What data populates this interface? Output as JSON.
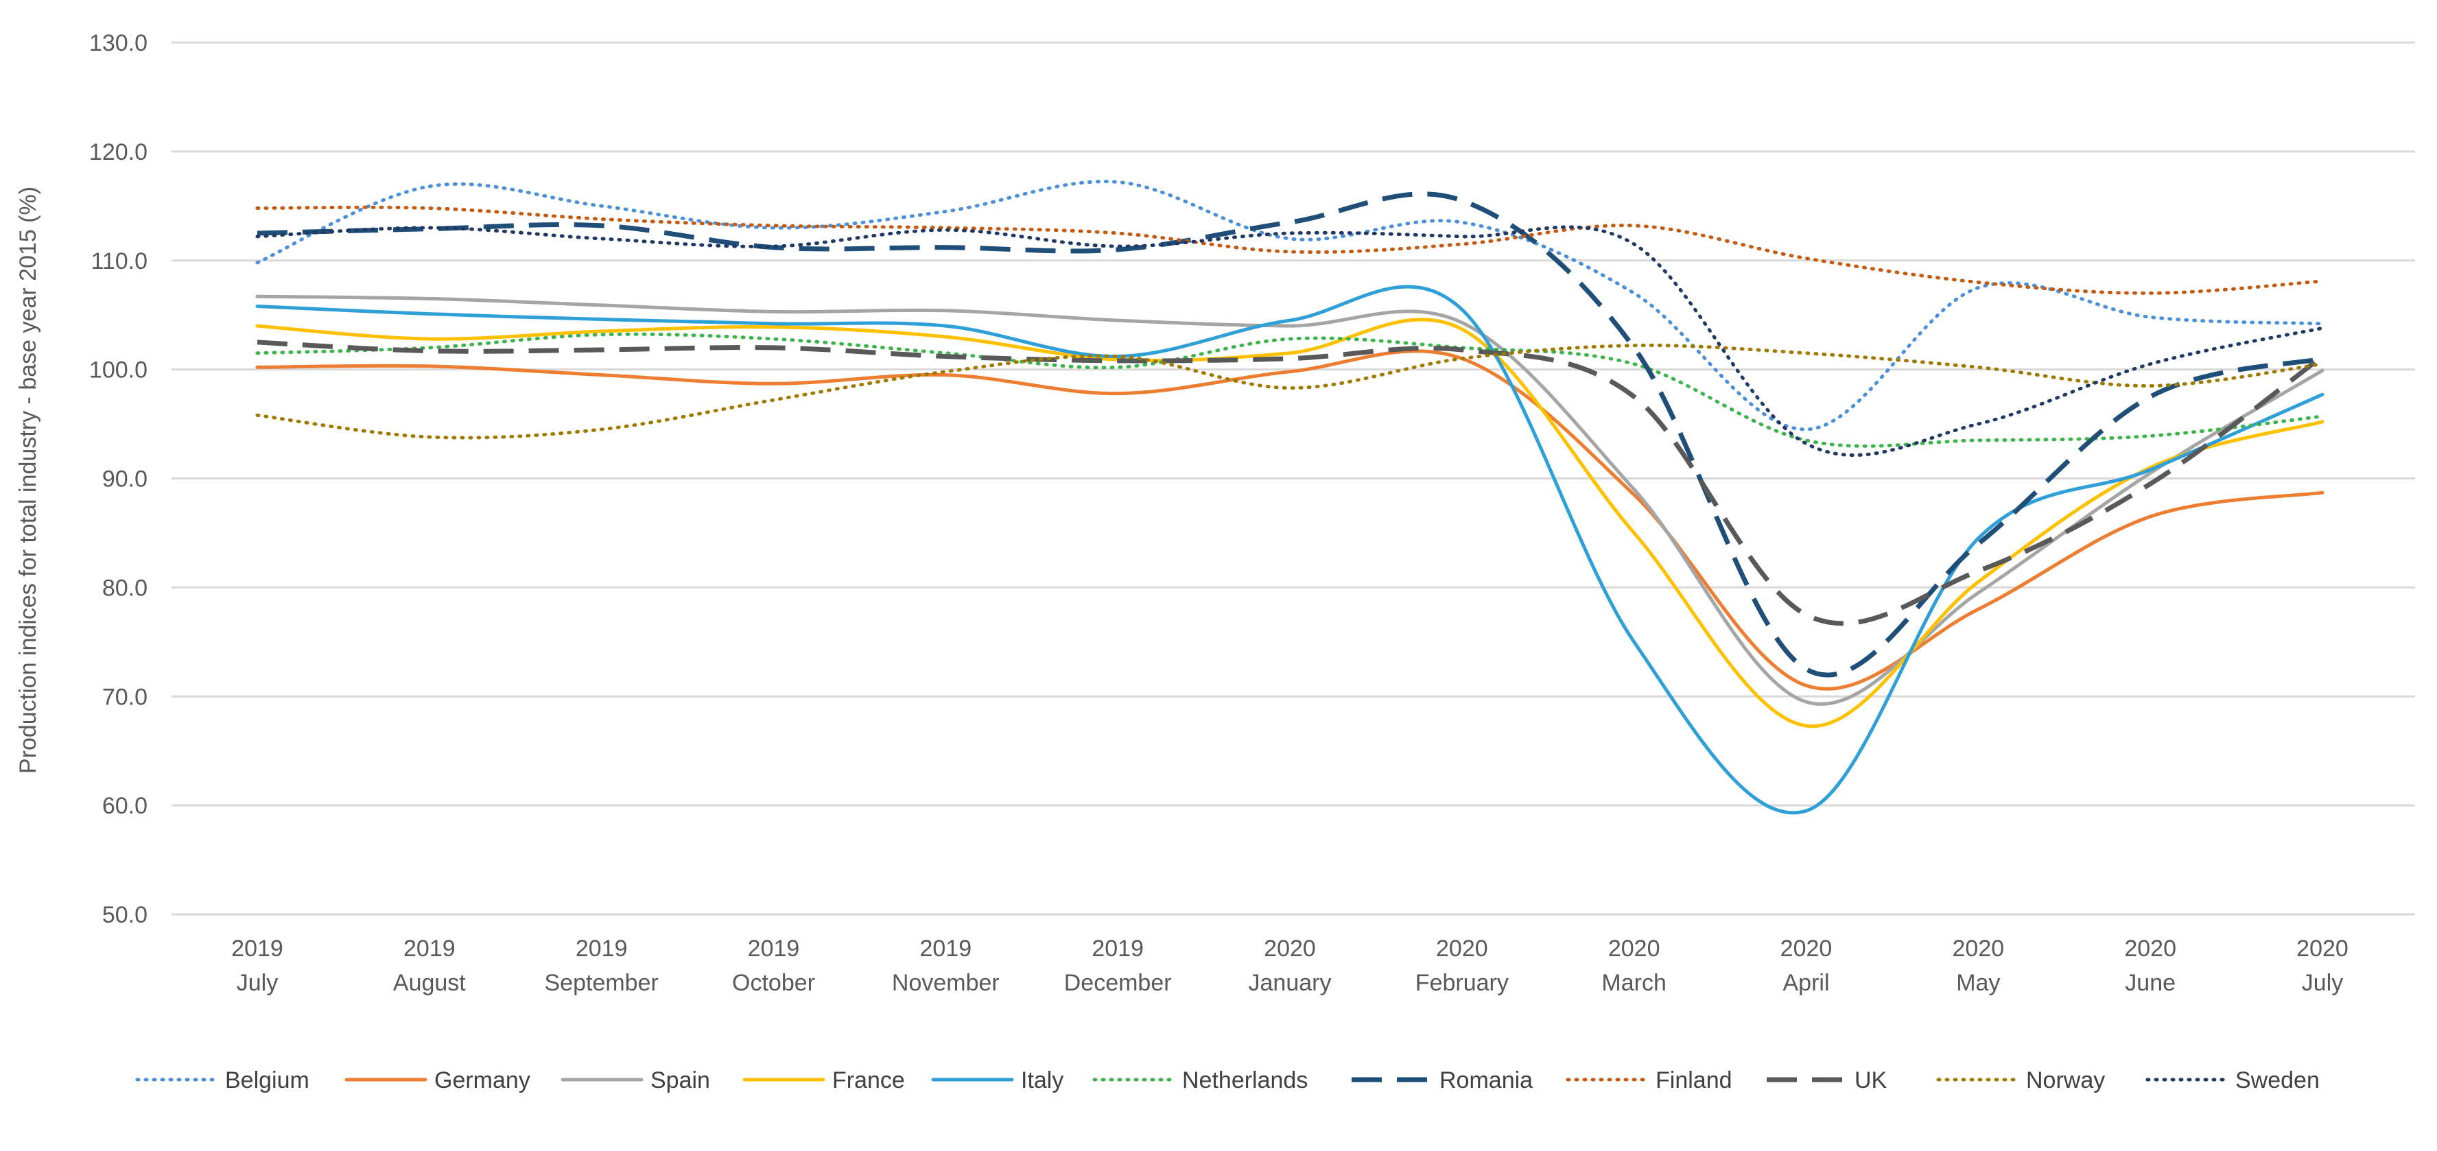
{
  "chart_data": {
    "type": "line",
    "title": "",
    "xlabel": "",
    "ylabel": "Production indices for total industry  - base year 2015 (%)",
    "ylim": [
      50,
      130
    ],
    "yticks": [
      "50.0",
      "60.0",
      "70.0",
      "80.0",
      "90.0",
      "100.0",
      "110.0",
      "120.0",
      "130.0"
    ],
    "grid": "horizontal",
    "legend_position": "bottom",
    "categories": [
      {
        "year": "2019",
        "month": "July"
      },
      {
        "year": "2019",
        "month": "August"
      },
      {
        "year": "2019",
        "month": "September"
      },
      {
        "year": "2019",
        "month": "October"
      },
      {
        "year": "2019",
        "month": "November"
      },
      {
        "year": "2019",
        "month": "December"
      },
      {
        "year": "2020",
        "month": "January"
      },
      {
        "year": "2020",
        "month": "February"
      },
      {
        "year": "2020",
        "month": "March"
      },
      {
        "year": "2020",
        "month": "April"
      },
      {
        "year": "2020",
        "month": "May"
      },
      {
        "year": "2020",
        "month": "June"
      },
      {
        "year": "2020",
        "month": "July"
      }
    ],
    "series": [
      {
        "name": "Belgium",
        "color": "#4a90d9",
        "dash": "dot",
        "values": [
          109.8,
          116.8,
          115.0,
          113.0,
          114.5,
          117.2,
          112.0,
          113.5,
          107.0,
          94.5,
          107.5,
          104.8,
          104.2
        ]
      },
      {
        "name": "Germany",
        "color": "#ed7d31",
        "dash": "solid",
        "values": [
          100.2,
          100.3,
          99.5,
          98.7,
          99.5,
          97.8,
          99.8,
          101.0,
          88.5,
          71.0,
          78.0,
          86.5,
          88.7
        ]
      },
      {
        "name": "Spain",
        "color": "#a5a5a5",
        "dash": "solid",
        "values": [
          106.7,
          106.5,
          105.9,
          105.3,
          105.4,
          104.5,
          104.0,
          104.3,
          89.0,
          69.5,
          79.5,
          90.5,
          99.9
        ]
      },
      {
        "name": "France",
        "color": "#ffc000",
        "dash": "solid",
        "values": [
          104.0,
          102.8,
          103.5,
          103.9,
          103.0,
          100.9,
          101.5,
          103.7,
          85.0,
          67.3,
          80.5,
          91.0,
          95.2
        ]
      },
      {
        "name": "Italy",
        "color": "#2f9fd8",
        "dash": "solid",
        "values": [
          105.8,
          105.1,
          104.6,
          104.2,
          104.0,
          101.2,
          104.5,
          105.5,
          75.0,
          59.5,
          84.5,
          90.8,
          97.7
        ]
      },
      {
        "name": "Netherlands",
        "color": "#3cb44b",
        "dash": "dot",
        "values": [
          101.5,
          102.0,
          103.2,
          102.8,
          101.5,
          100.2,
          102.8,
          102.0,
          100.5,
          93.5,
          93.5,
          93.9,
          95.7
        ]
      },
      {
        "name": "Romania",
        "color": "#1f4e79",
        "dash": "longdash",
        "values": [
          112.5,
          112.9,
          113.2,
          111.2,
          111.2,
          111.0,
          113.5,
          115.5,
          102.0,
          72.5,
          84.0,
          97.5,
          101.0
        ]
      },
      {
        "name": "Finland",
        "color": "#c55a11",
        "dash": "dot",
        "values": [
          114.8,
          114.8,
          113.8,
          113.2,
          113.0,
          112.5,
          110.8,
          111.5,
          113.2,
          110.2,
          108.0,
          107.0,
          108.1
        ]
      },
      {
        "name": "UK",
        "color": "#595959",
        "dash": "longdash",
        "values": [
          102.5,
          101.7,
          101.8,
          102.0,
          101.2,
          100.8,
          101.0,
          101.8,
          97.5,
          77.5,
          81.5,
          89.5,
          101.2
        ]
      },
      {
        "name": "Norway",
        "color": "#a07a00",
        "dash": "dot",
        "values": [
          95.8,
          93.8,
          94.5,
          97.2,
          99.8,
          101.2,
          98.3,
          101.0,
          102.2,
          101.5,
          100.2,
          98.5,
          100.5
        ]
      },
      {
        "name": "Sweden",
        "color": "#1f3864",
        "dash": "dot",
        "values": [
          112.2,
          113.0,
          112.0,
          111.3,
          112.8,
          111.3,
          112.5,
          112.2,
          111.5,
          93.2,
          95.0,
          100.5,
          103.8
        ]
      }
    ]
  }
}
